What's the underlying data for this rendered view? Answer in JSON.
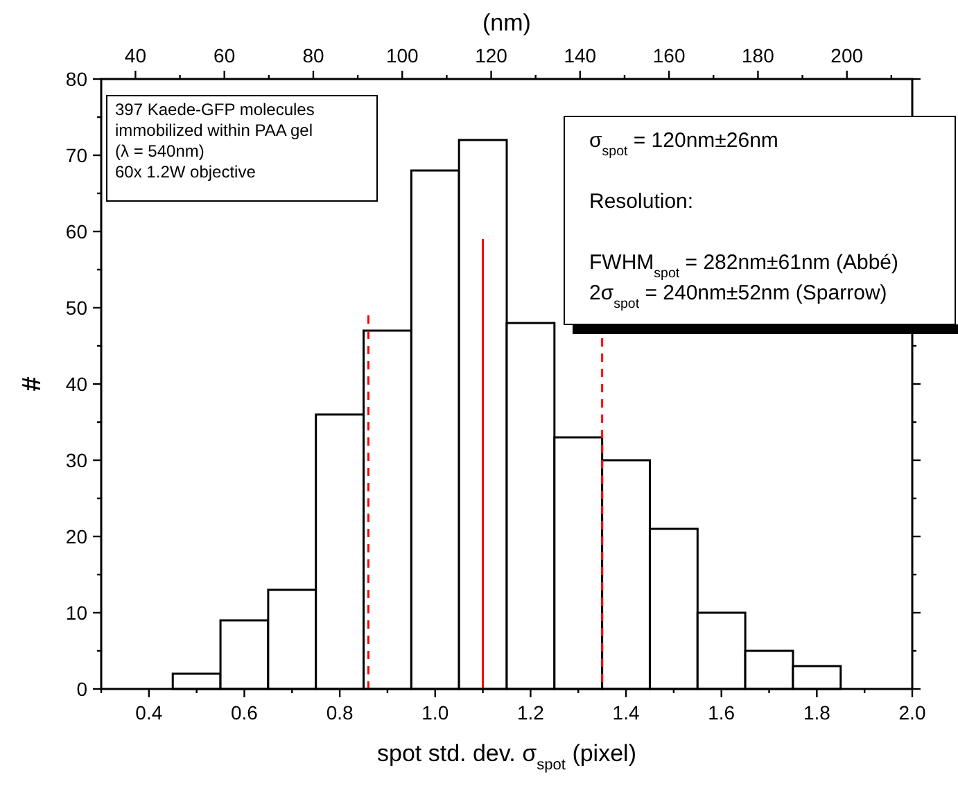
{
  "chart_data": {
    "type": "histogram",
    "bins": [
      0.45,
      0.55,
      0.65,
      0.75,
      0.85,
      0.95,
      1.05,
      1.15,
      1.25,
      1.35,
      1.45,
      1.55,
      1.65,
      1.75,
      1.85
    ],
    "values": [
      2,
      9,
      13,
      36,
      47,
      68,
      72,
      48,
      33,
      30,
      21,
      10,
      5,
      3
    ],
    "color": "#000000",
    "series": [
      {
        "type": "line",
        "x": [
          0.86,
          0.86
        ],
        "values": [
          0,
          49
        ],
        "color": "#ff0000",
        "line_style": "dashed"
      },
      {
        "type": "line",
        "x": [
          1.1,
          1.1
        ],
        "values": [
          0,
          59
        ],
        "color": "#ff0000",
        "line_style": "solid"
      },
      {
        "type": "line",
        "x": [
          1.35,
          1.35
        ],
        "values": [
          0,
          46
        ],
        "color": "#ff0000",
        "line_style": "dashed"
      }
    ],
    "xlabel": "spot std. dev. σ$_{spot}$ (pixel)",
    "ylabel": "#",
    "x2label": "(nm)",
    "xlim": [
      0.3,
      2.0
    ],
    "xticks": [
      {
        "value": 0.3,
        "label": null
      },
      0.4,
      {
        "value": 0.5,
        "label": null
      },
      0.6,
      {
        "value": 0.7,
        "label": null
      },
      0.8,
      {
        "value": 0.9,
        "label": null
      },
      {
        "value": 1.0,
        "label": "1.0"
      },
      {
        "value": 1.1,
        "label": null
      },
      1.2,
      {
        "value": 1.3,
        "label": null
      },
      1.4,
      {
        "value": 1.5,
        "label": null
      },
      1.6,
      {
        "value": 1.7,
        "label": null
      },
      1.8,
      {
        "value": 1.9,
        "label": null
      },
      {
        "value": 2.0,
        "label": "2.0"
      }
    ],
    "x2lim": [
      32.3,
      214.7
    ],
    "x2ticks": [
      40,
      {
        "value": 50,
        "label": null
      },
      60,
      {
        "value": 70,
        "label": null
      },
      80,
      {
        "value": 90,
        "label": null
      },
      100,
      {
        "value": 110,
        "label": null
      },
      120,
      {
        "value": 130,
        "label": null
      },
      140,
      {
        "value": 150,
        "label": null
      },
      160,
      {
        "value": 170,
        "label": null
      },
      180,
      {
        "value": 190,
        "label": null
      },
      200,
      {
        "value": 210,
        "label": null
      }
    ],
    "ylim": [
      0,
      80
    ],
    "yticks": [
      0,
      {
        "value": 5,
        "label": null
      },
      10,
      {
        "value": 15,
        "label": null
      },
      20,
      {
        "value": 25,
        "label": null
      },
      30,
      {
        "value": 35,
        "label": null
      },
      40,
      {
        "value": 45,
        "label": null
      },
      50,
      {
        "value": 55,
        "label": null
      },
      60,
      {
        "value": 65,
        "label": null
      },
      70,
      {
        "value": 75,
        "label": null
      },
      80
    ],
    "grid": false,
    "annotations": [
      "397 Kaede-GFP molecules\nimmobilized within PAA gel\n(λ = 540nm)\n60x 1.2W objective",
      "σ$_{spot}$ = 120nm±26nm\n\nResolution:\n\nFWHM$_{spot}$ = 282nm±61nm (Abbé)\n2σ$_{spot}$ = 240nm±52nm (Sparrow)"
    ]
  }
}
